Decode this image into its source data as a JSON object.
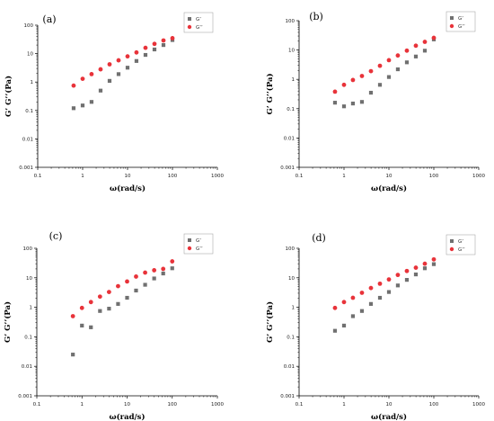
{
  "chart_data": [
    {
      "type": "scatter",
      "panel_label": "(a)",
      "xlabel": "ω(rad/s)",
      "ylabel": "G’ G’’(Pa)",
      "xscale": "log",
      "yscale": "log",
      "xlim": [
        0.1,
        1000
      ],
      "ylim": [
        0.001,
        100
      ],
      "x_ticks": [
        "0.1",
        "1",
        "10",
        "100",
        "1000"
      ],
      "y_ticks": [
        "0.001",
        "0.01",
        "0.1",
        "1",
        "10",
        "100"
      ],
      "legend_position": "top-right",
      "series": [
        {
          "name": "G’",
          "marker": "square",
          "color": "#707070",
          "x": [
            0.63,
            1.0,
            1.58,
            2.51,
            3.98,
            6.31,
            10,
            15.8,
            25.1,
            39.8,
            63.1,
            100
          ],
          "y": [
            0.12,
            0.15,
            0.2,
            0.5,
            1.1,
            1.9,
            3.2,
            5.5,
            9,
            14,
            20,
            30
          ]
        },
        {
          "name": "G’’",
          "marker": "circle",
          "color": "#e8333a",
          "x": [
            0.63,
            1.0,
            1.58,
            2.51,
            3.98,
            6.31,
            10,
            15.8,
            25.1,
            39.8,
            63.1,
            100
          ],
          "y": [
            0.75,
            1.3,
            1.9,
            2.8,
            4.2,
            5.8,
            8,
            11,
            16,
            22,
            29,
            35
          ]
        }
      ]
    },
    {
      "type": "scatter",
      "panel_label": "(b)",
      "xlabel": "ω(rad/s)",
      "ylabel": "G’ G’’(Pa)",
      "xscale": "log",
      "yscale": "log",
      "xlim": [
        0.1,
        1000
      ],
      "ylim": [
        0.001,
        100
      ],
      "x_ticks": [
        "0.1",
        "1",
        "10",
        "100",
        "1000"
      ],
      "y_ticks": [
        "0.001",
        "0.01",
        "0.1",
        "1",
        "10",
        "100"
      ],
      "legend_position": "top-right",
      "series": [
        {
          "name": "G’",
          "marker": "square",
          "color": "#707070",
          "x": [
            0.63,
            1.0,
            1.58,
            2.51,
            3.98,
            6.31,
            10,
            15.8,
            25.1,
            39.8,
            63.1,
            100
          ],
          "y": [
            0.16,
            0.12,
            0.15,
            0.17,
            0.35,
            0.65,
            1.2,
            2.2,
            3.8,
            6,
            9.5,
            23
          ]
        },
        {
          "name": "G’’",
          "marker": "circle",
          "color": "#e8333a",
          "x": [
            0.63,
            1.0,
            1.58,
            2.51,
            3.98,
            6.31,
            10,
            15.8,
            25.1,
            39.8,
            63.1,
            100
          ],
          "y": [
            0.38,
            0.65,
            0.95,
            1.3,
            1.9,
            2.9,
            4.5,
            6.5,
            9.5,
            14,
            19,
            26
          ]
        }
      ]
    },
    {
      "type": "scatter",
      "panel_label": "(c)",
      "xlabel": "ω(rad/s)",
      "ylabel": "G’ G’’(Pa)",
      "xscale": "log",
      "yscale": "log",
      "xlim": [
        0.1,
        1000
      ],
      "ylim": [
        0.001,
        100
      ],
      "x_ticks": [
        "0.1",
        "1",
        "10",
        "100",
        "1000"
      ],
      "y_ticks": [
        "0.001",
        "0.01",
        "0.1",
        "1",
        "10",
        "100"
      ],
      "legend_position": "top-right",
      "series": [
        {
          "name": "G’",
          "marker": "square",
          "color": "#707070",
          "x": [
            0.63,
            1.0,
            1.58,
            2.51,
            3.98,
            6.31,
            10,
            15.8,
            25.1,
            39.8,
            63.1,
            100
          ],
          "y": [
            0.025,
            0.24,
            0.21,
            0.75,
            0.9,
            1.3,
            2.1,
            3.7,
            5.8,
            9.5,
            14,
            21
          ]
        },
        {
          "name": "G’’",
          "marker": "circle",
          "color": "#e8333a",
          "x": [
            0.63,
            1.0,
            1.58,
            2.51,
            3.98,
            6.31,
            10,
            15.8,
            25.1,
            39.8,
            63.1,
            100
          ],
          "y": [
            0.5,
            0.95,
            1.5,
            2.3,
            3.3,
            5.2,
            7.5,
            11,
            15,
            18,
            20,
            36
          ]
        }
      ]
    },
    {
      "type": "scatter",
      "panel_label": "(d)",
      "xlabel": "ω(rad/s)",
      "ylabel": "G’ G’’(Pa)",
      "xscale": "log",
      "yscale": "log",
      "xlim": [
        0.1,
        1000
      ],
      "ylim": [
        0.001,
        100
      ],
      "x_ticks": [
        "0.1",
        "1",
        "10",
        "100",
        "1000"
      ],
      "y_ticks": [
        "0.001",
        "0.01",
        "0.1",
        "1",
        "10",
        "100"
      ],
      "legend_position": "top-right",
      "series": [
        {
          "name": "G’",
          "marker": "square",
          "color": "#707070",
          "x": [
            0.63,
            1.0,
            1.58,
            2.51,
            3.98,
            6.31,
            10,
            15.8,
            25.1,
            39.8,
            63.1,
            100
          ],
          "y": [
            0.16,
            0.24,
            0.5,
            0.75,
            1.3,
            2.1,
            3.3,
            5.5,
            8.5,
            13,
            21,
            29
          ]
        },
        {
          "name": "G’’",
          "marker": "circle",
          "color": "#e8333a",
          "x": [
            0.63,
            1.0,
            1.58,
            2.51,
            3.98,
            6.31,
            10,
            15.8,
            25.1,
            39.8,
            63.1,
            100
          ],
          "y": [
            0.95,
            1.5,
            2.1,
            3.1,
            4.5,
            6.3,
            8.8,
            12.5,
            17,
            22,
            30,
            42
          ]
        }
      ]
    }
  ]
}
